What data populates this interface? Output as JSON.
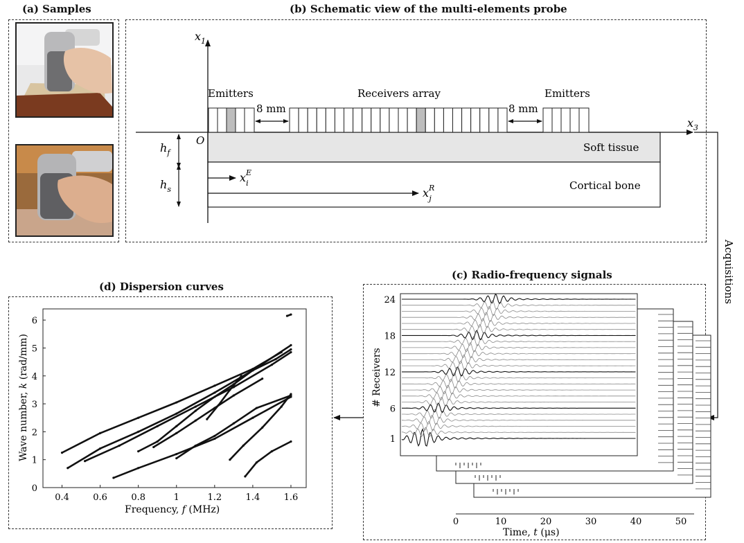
{
  "panels": {
    "a": {
      "title": "(a) Samples"
    },
    "b": {
      "title": "(b) Schematic view of the multi-elements probe"
    },
    "c": {
      "title": "(c) Radio-frequency signals"
    },
    "d": {
      "title": "(d) Dispersion curves"
    }
  },
  "schematic": {
    "axis_x1": "x",
    "axis_x1_sub": "1",
    "axis_x3": "x",
    "axis_x3_sub": "3",
    "origin": "O",
    "emitters_left": "Emitters",
    "emitters_right": "Emitters",
    "receivers": "Receivers array",
    "gap_left": "8 mm",
    "gap_right": "8 mm",
    "soft_tissue": "Soft tissue",
    "cortical_bone": "Cortical bone",
    "hf": "h",
    "hf_sub": "f",
    "hs": "h",
    "hs_sub": "s",
    "xiE": "x",
    "xiE_sub": "i",
    "xiE_sup": "E",
    "xjR": "x",
    "xjR_sub": "j",
    "xjR_sup": "R"
  },
  "acquisitions_label": "Acquisitions",
  "rf": {
    "ylabel": "# Receivers",
    "yticks": [
      "1",
      "6",
      "12",
      "18",
      "24"
    ],
    "xticks": [
      "0",
      "10",
      "20",
      "30",
      "40",
      "50"
    ],
    "xlabel_prefix": "Time, ",
    "xlabel_var": "t",
    "xlabel_unit": " (μs)"
  },
  "chart_data": {
    "type": "scatter",
    "title": "(d) Dispersion curves",
    "xlabel": "Frequency, f (MHz)",
    "ylabel": "Wave number, k (rad/mm)",
    "xlim": [
      0.3,
      1.68
    ],
    "ylim": [
      0,
      6.4
    ],
    "xticks": [
      "0.4",
      "0.6",
      "0.8",
      "1",
      "1.2",
      "1.4",
      "1.6"
    ],
    "yticks": [
      "0",
      "1",
      "2",
      "3",
      "4",
      "5",
      "6"
    ],
    "grid": false,
    "series": [
      {
        "x": [
          0.4,
          0.6,
          0.8,
          1.0,
          1.2,
          1.4,
          1.55
        ],
        "y": [
          1.25,
          1.95,
          2.5,
          3.05,
          3.65,
          4.25,
          4.85
        ]
      },
      {
        "x": [
          0.43,
          0.6,
          0.8,
          1.0,
          1.2,
          1.4,
          1.6
        ],
        "y": [
          0.7,
          1.4,
          2.0,
          2.65,
          3.4,
          4.2,
          5.1
        ]
      },
      {
        "x": [
          0.52,
          0.7,
          0.9,
          1.1,
          1.3,
          1.5,
          1.6
        ],
        "y": [
          0.95,
          1.5,
          2.2,
          2.9,
          3.6,
          4.4,
          4.85
        ]
      },
      {
        "x": [
          0.67,
          0.8,
          1.0,
          1.2,
          1.4,
          1.6
        ],
        "y": [
          0.35,
          0.7,
          1.2,
          1.75,
          2.5,
          3.25
        ]
      },
      {
        "x": [
          0.8,
          0.9,
          1.0,
          1.1,
          1.2,
          1.3,
          1.4,
          1.52,
          1.6
        ],
        "y": [
          1.3,
          1.65,
          2.2,
          2.75,
          3.25,
          3.7,
          4.2,
          4.6,
          4.95
        ]
      },
      {
        "x": [
          0.88,
          1.0,
          1.1,
          1.2,
          1.3,
          1.45
        ],
        "y": [
          1.45,
          1.95,
          2.4,
          2.85,
          3.3,
          3.9
        ]
      },
      {
        "x": [
          1.0,
          1.1,
          1.2,
          1.3,
          1.42,
          1.6
        ],
        "y": [
          1.05,
          1.5,
          1.85,
          2.3,
          2.85,
          3.3
        ]
      },
      {
        "x": [
          1.28,
          1.35,
          1.45,
          1.55,
          1.6
        ],
        "y": [
          1.0,
          1.5,
          2.15,
          2.9,
          3.35
        ]
      },
      {
        "x": [
          1.36,
          1.42,
          1.5,
          1.6
        ],
        "y": [
          0.4,
          0.9,
          1.3,
          1.65
        ]
      },
      {
        "x": [
          1.16,
          1.22,
          1.28,
          1.34
        ],
        "y": [
          2.45,
          2.95,
          3.5,
          4.0
        ]
      },
      {
        "x": [
          1.58,
          1.6
        ],
        "y": [
          6.15,
          6.2
        ]
      }
    ]
  }
}
